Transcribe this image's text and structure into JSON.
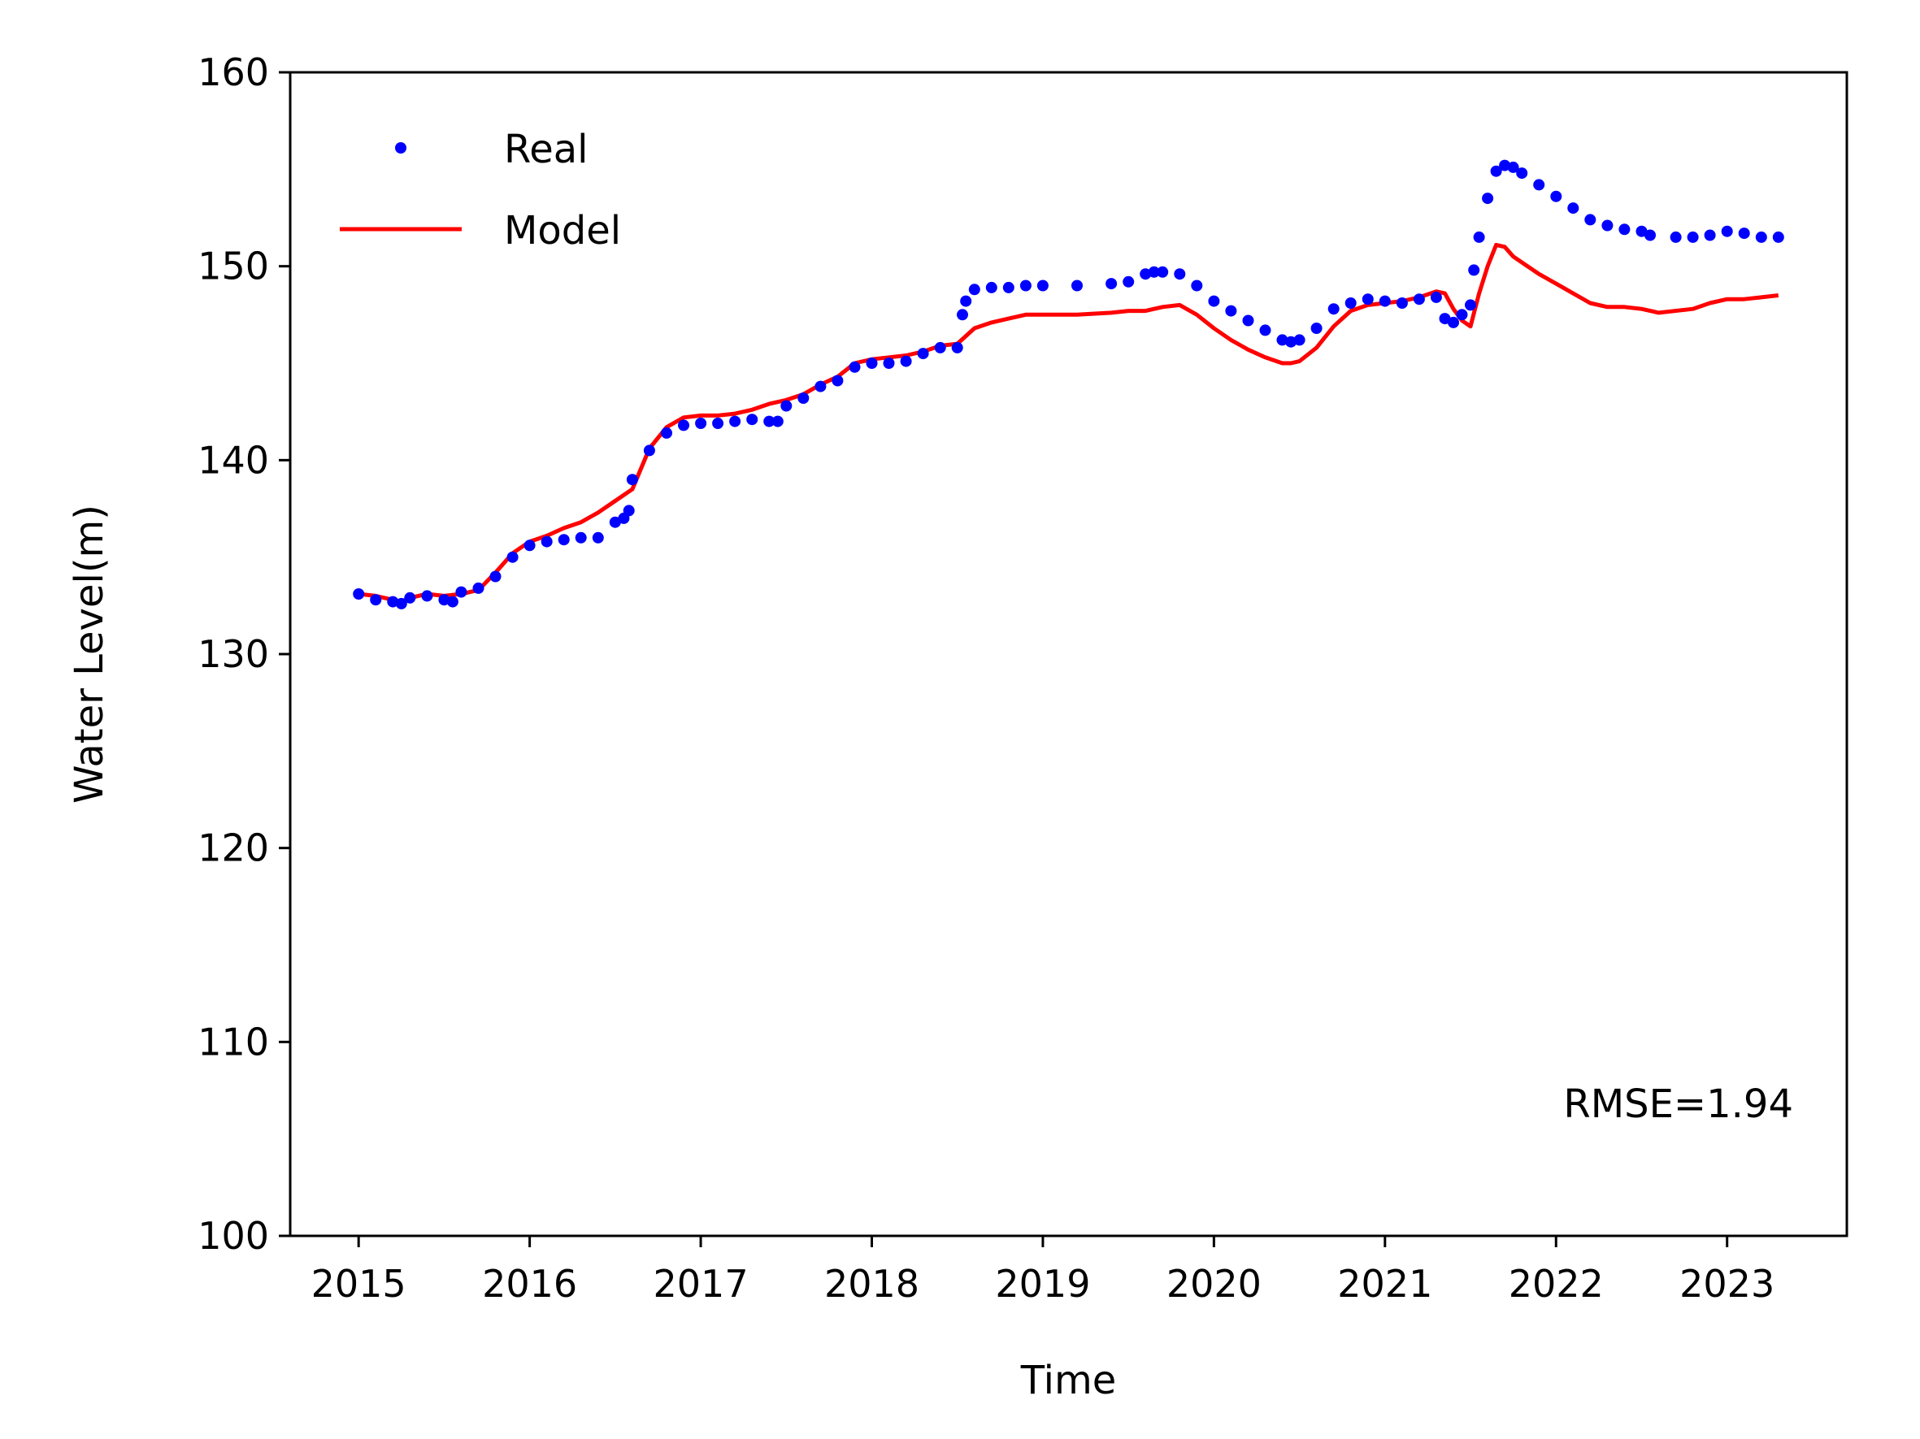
{
  "chart_data": {
    "type": "line",
    "title": "",
    "xlabel": "Time",
    "ylabel": "Water Level(m)",
    "xlim": [
      2014.6,
      2023.7
    ],
    "ylim": [
      100,
      160
    ],
    "x_ticks": [
      2015,
      2016,
      2017,
      2018,
      2019,
      2020,
      2021,
      2022,
      2023
    ],
    "y_ticks": [
      100,
      110,
      120,
      130,
      140,
      150,
      160
    ],
    "grid": false,
    "legend_position": "top-left",
    "annotation": "RMSE=1.94",
    "series": [
      {
        "name": "Real",
        "style": "dots",
        "color": "#0000ff",
        "x": [
          2015.0,
          2015.1,
          2015.2,
          2015.25,
          2015.3,
          2015.4,
          2015.5,
          2015.55,
          2015.6,
          2015.7,
          2015.8,
          2015.9,
          2016.0,
          2016.1,
          2016.2,
          2016.3,
          2016.4,
          2016.5,
          2016.55,
          2016.58,
          2016.6,
          2016.7,
          2016.8,
          2016.9,
          2017.0,
          2017.1,
          2017.2,
          2017.3,
          2017.4,
          2017.45,
          2017.5,
          2017.6,
          2017.7,
          2017.8,
          2017.9,
          2018.0,
          2018.1,
          2018.2,
          2018.3,
          2018.4,
          2018.5,
          2018.53,
          2018.55,
          2018.6,
          2018.7,
          2018.8,
          2018.9,
          2019.0,
          2019.2,
          2019.4,
          2019.5,
          2019.6,
          2019.65,
          2019.7,
          2019.8,
          2019.9,
          2020.0,
          2020.1,
          2020.2,
          2020.3,
          2020.4,
          2020.45,
          2020.5,
          2020.6,
          2020.7,
          2020.8,
          2020.9,
          2021.0,
          2021.1,
          2021.2,
          2021.3,
          2021.35,
          2021.4,
          2021.45,
          2021.5,
          2021.52,
          2021.55,
          2021.6,
          2021.65,
          2021.7,
          2021.75,
          2021.8,
          2021.9,
          2022.0,
          2022.1,
          2022.2,
          2022.3,
          2022.4,
          2022.5,
          2022.55,
          2022.7,
          2022.8,
          2022.9,
          2023.0,
          2023.1,
          2023.2,
          2023.3
        ],
        "y": [
          133.1,
          132.8,
          132.7,
          132.6,
          132.9,
          133.0,
          132.8,
          132.7,
          133.2,
          133.4,
          134.0,
          135.0,
          135.6,
          135.8,
          135.9,
          136.0,
          136.0,
          136.8,
          137.0,
          137.4,
          139.0,
          140.5,
          141.4,
          141.8,
          141.9,
          141.9,
          142.0,
          142.1,
          142.0,
          142.0,
          142.8,
          143.2,
          143.8,
          144.1,
          144.8,
          145.0,
          145.0,
          145.1,
          145.5,
          145.8,
          145.8,
          147.5,
          148.2,
          148.8,
          148.9,
          148.9,
          149.0,
          149.0,
          149.0,
          149.1,
          149.2,
          149.6,
          149.7,
          149.7,
          149.6,
          149.0,
          148.2,
          147.7,
          147.2,
          146.7,
          146.2,
          146.1,
          146.2,
          146.8,
          147.8,
          148.1,
          148.3,
          148.2,
          148.1,
          148.3,
          148.4,
          147.3,
          147.1,
          147.5,
          148.0,
          149.8,
          151.5,
          153.5,
          154.9,
          155.2,
          155.1,
          154.8,
          154.2,
          153.6,
          153.0,
          152.4,
          152.1,
          151.9,
          151.8,
          151.6,
          151.5,
          151.5,
          151.6,
          151.8,
          151.7,
          151.5,
          151.5
        ]
      },
      {
        "name": "Model",
        "style": "line",
        "color": "#ff0000",
        "x": [
          2015.0,
          2015.1,
          2015.2,
          2015.25,
          2015.3,
          2015.4,
          2015.5,
          2015.6,
          2015.7,
          2015.8,
          2015.9,
          2016.0,
          2016.1,
          2016.2,
          2016.3,
          2016.4,
          2016.5,
          2016.6,
          2016.7,
          2016.8,
          2016.9,
          2017.0,
          2017.1,
          2017.2,
          2017.3,
          2017.4,
          2017.5,
          2017.6,
          2017.7,
          2017.8,
          2017.9,
          2018.0,
          2018.1,
          2018.2,
          2018.3,
          2018.4,
          2018.5,
          2018.55,
          2018.6,
          2018.7,
          2018.8,
          2018.9,
          2019.0,
          2019.2,
          2019.4,
          2019.5,
          2019.6,
          2019.7,
          2019.8,
          2019.9,
          2020.0,
          2020.1,
          2020.2,
          2020.3,
          2020.4,
          2020.45,
          2020.5,
          2020.6,
          2020.7,
          2020.8,
          2020.9,
          2021.0,
          2021.1,
          2021.2,
          2021.3,
          2021.35,
          2021.4,
          2021.45,
          2021.5,
          2021.55,
          2021.6,
          2021.65,
          2021.7,
          2021.75,
          2021.8,
          2021.9,
          2022.0,
          2022.1,
          2022.2,
          2022.3,
          2022.4,
          2022.5,
          2022.6,
          2022.8,
          2022.9,
          2023.0,
          2023.1,
          2023.2,
          2023.3
        ],
        "y": [
          133.1,
          133.0,
          132.8,
          132.7,
          132.9,
          133.1,
          133.0,
          133.1,
          133.3,
          134.2,
          135.2,
          135.8,
          136.1,
          136.5,
          136.8,
          137.3,
          137.9,
          138.5,
          140.6,
          141.7,
          142.2,
          142.3,
          142.3,
          142.4,
          142.6,
          142.9,
          143.1,
          143.4,
          143.9,
          144.3,
          145.0,
          145.2,
          145.3,
          145.4,
          145.6,
          145.9,
          146.0,
          146.4,
          146.8,
          147.1,
          147.3,
          147.5,
          147.5,
          147.5,
          147.6,
          147.7,
          147.7,
          147.9,
          148.0,
          147.5,
          146.8,
          146.2,
          145.7,
          145.3,
          145.0,
          145.0,
          145.1,
          145.8,
          146.9,
          147.7,
          148.0,
          148.1,
          148.2,
          148.4,
          148.7,
          148.6,
          147.8,
          147.2,
          146.9,
          148.6,
          150.0,
          151.1,
          151.0,
          150.5,
          150.2,
          149.6,
          149.1,
          148.6,
          148.1,
          147.9,
          147.9,
          147.8,
          147.6,
          147.8,
          148.1,
          148.3,
          148.3,
          148.4,
          148.5
        ]
      }
    ]
  }
}
